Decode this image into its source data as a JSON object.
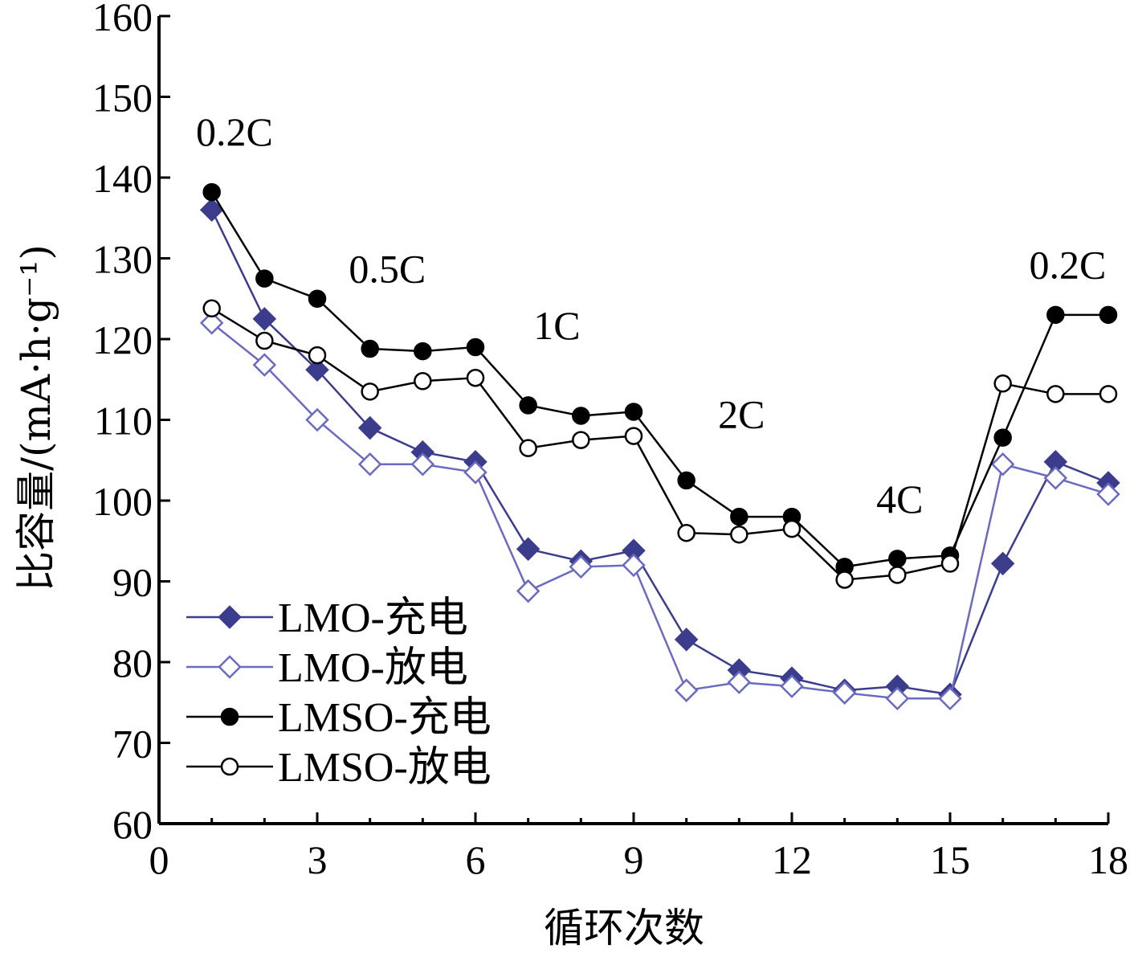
{
  "chart_data": {
    "type": "line",
    "xlabel": "循环次数",
    "ylabel": "比容量/(mA·h·g⁻¹)",
    "xlim": [
      0,
      18
    ],
    "ylim": [
      60,
      160
    ],
    "x_ticks": [
      0,
      3,
      6,
      9,
      12,
      15,
      18
    ],
    "y_ticks": [
      60,
      70,
      80,
      90,
      100,
      110,
      120,
      130,
      140,
      150,
      160
    ],
    "x": [
      1,
      2,
      3,
      4,
      5,
      6,
      7,
      8,
      9,
      10,
      11,
      12,
      13,
      14,
      15,
      16,
      17,
      18
    ],
    "grid": false,
    "legend_position": "bottom-left",
    "series": [
      {
        "name": "LMO-充电",
        "marker": "filled-diamond",
        "color": "#3c3c8c",
        "values": [
          136.0,
          122.5,
          116.2,
          109.0,
          106.0,
          104.8,
          94.0,
          92.5,
          93.8,
          82.8,
          79.0,
          78.0,
          76.5,
          77.0,
          76.0,
          92.2,
          104.8,
          102.2
        ]
      },
      {
        "name": "LMO-放电",
        "marker": "open-diamond",
        "color": "#6a6ac0",
        "values": [
          122.0,
          116.8,
          110.0,
          104.5,
          104.5,
          103.5,
          88.8,
          91.8,
          92.0,
          76.5,
          77.5,
          77.0,
          76.2,
          75.5,
          75.5,
          104.5,
          102.8,
          100.8
        ]
      },
      {
        "name": "LMSO-充电",
        "marker": "filled-circle",
        "color": "#000000",
        "values": [
          138.2,
          127.5,
          125.0,
          118.8,
          118.5,
          119.0,
          111.8,
          110.5,
          111.0,
          102.5,
          98.0,
          98.0,
          91.8,
          92.8,
          93.2,
          107.8,
          123.0,
          123.0
        ]
      },
      {
        "name": "LMSO-放电",
        "marker": "open-circle",
        "color": "#000000",
        "values": [
          123.8,
          119.8,
          118.0,
          113.5,
          114.8,
          115.2,
          106.5,
          107.5,
          108.0,
          96.0,
          95.8,
          96.5,
          90.2,
          90.8,
          92.2,
          114.5,
          113.2,
          113.2
        ]
      }
    ],
    "annotations": [
      {
        "text": "0.2C",
        "x": 0.7,
        "y": 144
      },
      {
        "text": "0.5C",
        "x": 3.6,
        "y": 127
      },
      {
        "text": "1C",
        "x": 7.1,
        "y": 120
      },
      {
        "text": "2C",
        "x": 10.6,
        "y": 109
      },
      {
        "text": "4C",
        "x": 13.6,
        "y": 98.5
      },
      {
        "text": "0.2C",
        "x": 16.5,
        "y": 127.5
      }
    ]
  }
}
